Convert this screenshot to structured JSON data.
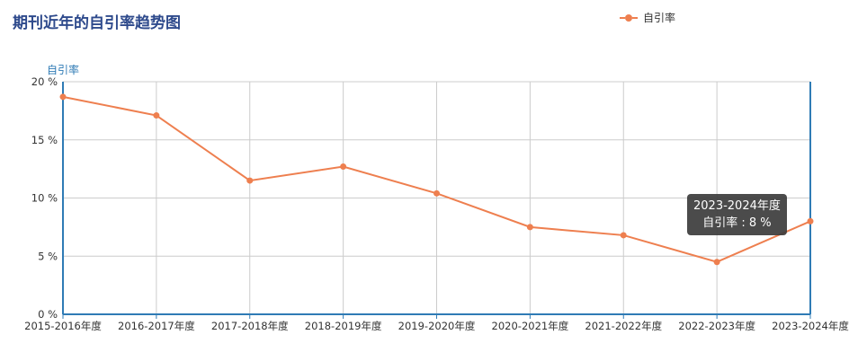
{
  "title": "期刊近年的自引率趋势图",
  "legend": {
    "label": "自引率"
  },
  "colors": {
    "line": "#ee7f4f",
    "axis": "#2f7bb5",
    "grid": "#cccccc",
    "title": "#2e4a8c"
  },
  "tooltip": {
    "line1": "2023-2024年度",
    "line2": "自引率 : 8 %"
  },
  "chart_data": {
    "type": "line",
    "title": "期刊近年的自引率趋势图",
    "ylabel": "自引率",
    "xlabel": "",
    "categories": [
      "2015-2016年度",
      "2016-2017年度",
      "2017-2018年度",
      "2018-2019年度",
      "2019-2020年度",
      "2020-2021年度",
      "2021-2022年度",
      "2022-2023年度",
      "2023-2024年度"
    ],
    "series": [
      {
        "name": "自引率",
        "values": [
          18.7,
          17.1,
          11.5,
          12.7,
          10.4,
          7.5,
          6.8,
          4.5,
          8.0
        ]
      }
    ],
    "ylim": [
      0,
      20
    ],
    "yticks": [
      "0 %",
      "5 %",
      "10 %",
      "15 %",
      "20 %"
    ],
    "grid": true,
    "legend_position": "top-right"
  }
}
